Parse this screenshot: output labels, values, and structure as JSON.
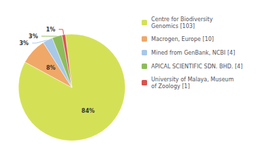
{
  "chart_data": {
    "type": "pie",
    "categories": [
      "Centre for Biodiversity\nGenomics [103]",
      "Macrogen, Europe [10]",
      "Mined from GenBank, NCBI [4]",
      "APICAL SCIENTIFIC SDN. BHD. [4]",
      "University of Malaya, Museum\nof Zoology [1]"
    ],
    "values": [
      84,
      8,
      3,
      3,
      1
    ],
    "value_labels": [
      "84%",
      "8%",
      "3%",
      "3%",
      "1%"
    ],
    "colors": [
      "#d4e157",
      "#f0a868",
      "#a8c8e8",
      "#8fbc5a",
      "#d9534f"
    ],
    "data_labels": true,
    "legend": "right"
  }
}
